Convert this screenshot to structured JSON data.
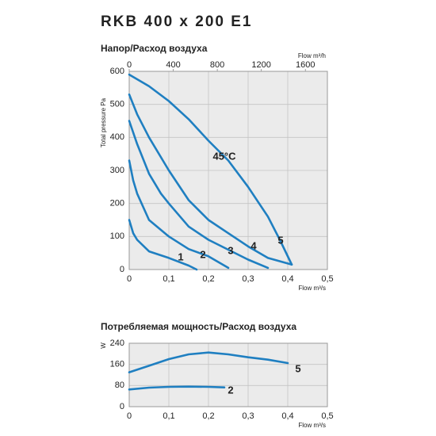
{
  "title": "RKB 400 x 200 E1",
  "chart_data": [
    {
      "type": "line",
      "title": "Напор/Расход воздуха",
      "ylabel": "Total pressure Pa",
      "xlabel": "Flow m³/s",
      "x2label": "Flow m³/h",
      "xlim": [
        0,
        0.5
      ],
      "xticks": [
        0,
        {
          "value": 0.1,
          "label": "0,1"
        },
        {
          "value": 0.2,
          "label": "0,2"
        },
        {
          "value": 0.3,
          "label": "0,3"
        },
        {
          "value": 0.4,
          "label": "0,4"
        },
        {
          "value": 0.5,
          "label": "0,5"
        }
      ],
      "x2lim": [
        0,
        1800
      ],
      "x2ticks": [
        0,
        400,
        800,
        1200,
        1600
      ],
      "ylim": [
        0,
        600
      ],
      "yticks": [
        0,
        100,
        200,
        300,
        400,
        500,
        600
      ],
      "grid": true,
      "annotations": [
        "45°C"
      ],
      "series": [
        {
          "name": "1",
          "color": "#1f7fc1",
          "x": [
            0,
            0.01,
            0.02,
            0.05,
            0.1,
            0.15,
            0.17
          ],
          "values": [
            150,
            110,
            90,
            55,
            35,
            12,
            0
          ]
        },
        {
          "name": "2",
          "color": "#1f7fc1",
          "x": [
            0,
            0.01,
            0.02,
            0.05,
            0.1,
            0.15,
            0.2,
            0.25
          ],
          "values": [
            330,
            270,
            230,
            150,
            100,
            62,
            40,
            5
          ]
        },
        {
          "name": "3",
          "color": "#1f7fc1",
          "x": [
            0,
            0.02,
            0.05,
            0.08,
            0.1,
            0.15,
            0.2,
            0.25,
            0.3,
            0.35
          ],
          "values": [
            450,
            380,
            290,
            230,
            200,
            130,
            90,
            60,
            30,
            5
          ]
        },
        {
          "name": "4",
          "color": "#1f7fc1",
          "x": [
            0,
            0.02,
            0.05,
            0.1,
            0.15,
            0.2,
            0.25,
            0.3,
            0.35,
            0.41
          ],
          "values": [
            530,
            470,
            400,
            300,
            210,
            150,
            110,
            70,
            35,
            15
          ]
        },
        {
          "name": "5",
          "color": "#1f7fc1",
          "x": [
            0,
            0.05,
            0.1,
            0.15,
            0.2,
            0.25,
            0.3,
            0.35,
            0.38,
            0.41
          ],
          "values": [
            590,
            555,
            510,
            455,
            390,
            330,
            250,
            160,
            90,
            15
          ]
        }
      ]
    },
    {
      "type": "line",
      "title": "Потребляемая мощность/Расход воздуха",
      "ylabel": "W",
      "xlabel": "Flow m³/s",
      "xlim": [
        0,
        0.5
      ],
      "xticks": [
        0,
        {
          "value": 0.1,
          "label": "0,1"
        },
        {
          "value": 0.2,
          "label": "0,2"
        },
        {
          "value": 0.3,
          "label": "0,3"
        },
        {
          "value": 0.4,
          "label": "0,4"
        },
        {
          "value": 0.5,
          "label": "0,5"
        }
      ],
      "ylim": [
        0,
        240
      ],
      "yticks": [
        0,
        80,
        160,
        240
      ],
      "grid": true,
      "series": [
        {
          "name": "5",
          "color": "#1f7fc1",
          "x": [
            0,
            0.05,
            0.1,
            0.15,
            0.2,
            0.25,
            0.3,
            0.35,
            0.4
          ],
          "values": [
            130,
            155,
            180,
            198,
            205,
            198,
            187,
            178,
            165
          ]
        },
        {
          "name": "2",
          "color": "#1f7fc1",
          "x": [
            0,
            0.05,
            0.1,
            0.15,
            0.2,
            0.24
          ],
          "values": [
            65,
            72,
            75,
            76,
            75,
            73
          ]
        }
      ]
    }
  ]
}
